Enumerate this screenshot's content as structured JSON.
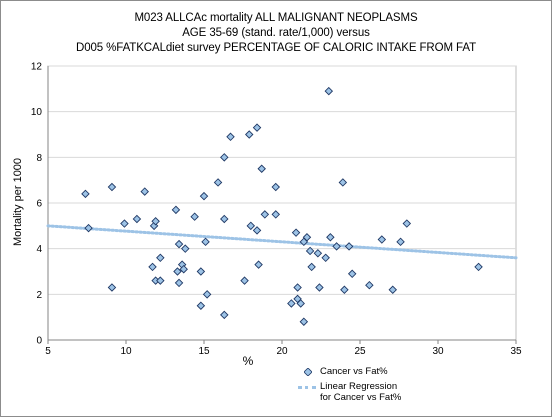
{
  "chart_data": {
    "type": "scatter",
    "title_lines": [
      "M023 ALLCAc mortality ALL MALIGNANT NEOPLASMS",
      "AGE 35-69 (stand. rate/1,000) versus",
      "D005 %FATKCALdiet survey PERCENTAGE OF CALORIC INTAKE FROM FAT"
    ],
    "xlabel": "%",
    "ylabel": "Mortality per 1000",
    "xlim": [
      5,
      35
    ],
    "ylim": [
      0,
      12
    ],
    "xticks": [
      5,
      10,
      15,
      20,
      25,
      30,
      35
    ],
    "yticks": [
      0,
      2,
      4,
      6,
      8,
      10,
      12
    ],
    "grid": "horizontal",
    "legend_position": "bottom",
    "colors": {
      "marker_fill": "#9dc3e6",
      "marker_stroke": "#1f3864",
      "trend": "#9dc3e6",
      "grid": "#d9d9d9"
    },
    "series": [
      {
        "name": "Cancer vs Fat%",
        "points": [
          [
            7.4,
            6.4
          ],
          [
            7.6,
            4.9
          ],
          [
            9.1,
            6.7
          ],
          [
            9.1,
            2.3
          ],
          [
            9.9,
            5.1
          ],
          [
            10.7,
            5.3
          ],
          [
            11.2,
            6.5
          ],
          [
            11.7,
            3.2
          ],
          [
            11.8,
            5.0
          ],
          [
            11.9,
            5.2
          ],
          [
            11.9,
            2.6
          ],
          [
            12.2,
            3.6
          ],
          [
            12.2,
            2.6
          ],
          [
            13.2,
            5.7
          ],
          [
            13.3,
            3.0
          ],
          [
            13.4,
            4.2
          ],
          [
            13.4,
            2.5
          ],
          [
            13.6,
            3.3
          ],
          [
            13.7,
            3.1
          ],
          [
            13.8,
            4.0
          ],
          [
            14.4,
            5.4
          ],
          [
            14.8,
            3.0
          ],
          [
            14.8,
            1.5
          ],
          [
            15.0,
            6.3
          ],
          [
            15.1,
            4.3
          ],
          [
            15.2,
            2.0
          ],
          [
            15.9,
            6.9
          ],
          [
            16.3,
            5.3
          ],
          [
            16.3,
            8.0
          ],
          [
            16.3,
            1.1
          ],
          [
            16.7,
            8.9
          ],
          [
            17.6,
            2.6
          ],
          [
            17.9,
            9.0
          ],
          [
            18.0,
            5.0
          ],
          [
            18.4,
            4.8
          ],
          [
            18.4,
            9.3
          ],
          [
            18.5,
            3.3
          ],
          [
            18.7,
            7.5
          ],
          [
            18.9,
            5.5
          ],
          [
            19.6,
            5.5
          ],
          [
            19.6,
            6.7
          ],
          [
            20.6,
            1.6
          ],
          [
            20.9,
            4.7
          ],
          [
            21.0,
            2.3
          ],
          [
            21.0,
            1.8
          ],
          [
            21.2,
            1.6
          ],
          [
            21.4,
            4.3
          ],
          [
            21.4,
            0.8
          ],
          [
            21.6,
            4.5
          ],
          [
            21.8,
            3.9
          ],
          [
            21.9,
            3.2
          ],
          [
            22.3,
            3.8
          ],
          [
            22.4,
            2.3
          ],
          [
            22.8,
            3.6
          ],
          [
            23.0,
            10.9
          ],
          [
            23.1,
            4.5
          ],
          [
            23.5,
            4.1
          ],
          [
            23.9,
            6.9
          ],
          [
            24.0,
            2.2
          ],
          [
            24.3,
            4.1
          ],
          [
            24.5,
            2.9
          ],
          [
            25.6,
            2.4
          ],
          [
            26.4,
            4.4
          ],
          [
            27.1,
            2.2
          ],
          [
            27.6,
            4.3
          ],
          [
            28.0,
            5.1
          ],
          [
            32.6,
            3.2
          ]
        ]
      },
      {
        "name": "Linear Regression for Cancer vs Fat%",
        "line": [
          [
            5,
            5.0
          ],
          [
            35,
            3.6
          ]
        ]
      }
    ]
  }
}
